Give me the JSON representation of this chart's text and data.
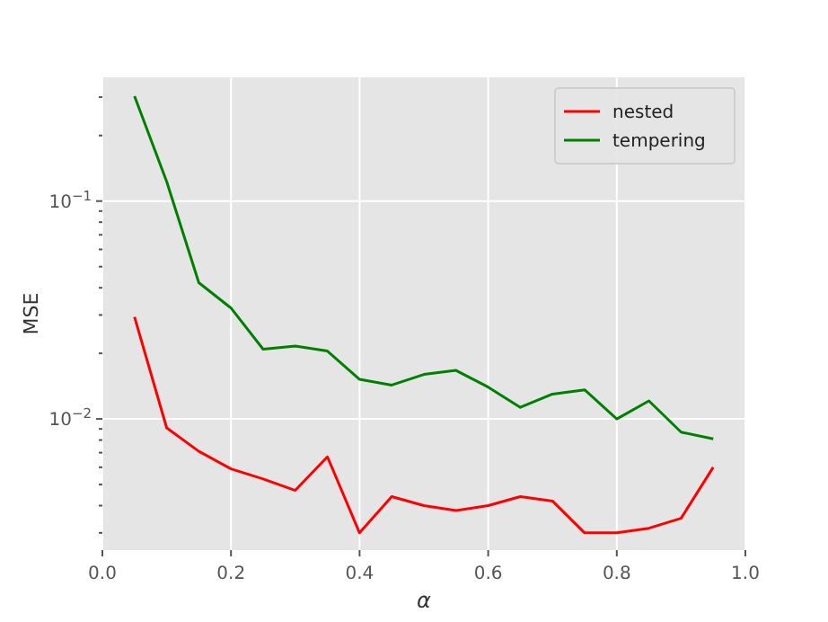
{
  "chart_data": {
    "type": "line",
    "xlabel": "α",
    "ylabel": "MSE",
    "log": "y",
    "grid": true,
    "legend": "top right",
    "line_style": "solid",
    "marker": "none",
    "x": [
      0.05,
      0.1,
      0.15,
      0.2,
      0.25,
      0.3,
      0.35,
      0.4,
      0.45,
      0.5,
      0.55,
      0.6,
      0.65,
      0.7,
      0.75,
      0.8,
      0.85,
      0.9,
      0.95
    ],
    "xlim": [
      0,
      1
    ],
    "xticks": [
      {
        "value": 0,
        "label": "0.0"
      },
      0.2,
      0.4,
      0.6,
      0.8,
      {
        "value": 1,
        "label": "1.0"
      }
    ],
    "ylim": [
      0.0025,
      0.37
    ],
    "yticks": [
      {
        "value": 0.003,
        "label": null
      },
      {
        "value": 0.004,
        "label": null
      },
      {
        "value": 0.005,
        "label": null
      },
      {
        "value": 0.006,
        "label": null
      },
      {
        "value": 0.007,
        "label": null
      },
      {
        "value": 0.008,
        "label": null
      },
      {
        "value": 0.009,
        "label": null
      },
      {
        "value": 0.01,
        "label": "10$^{−2}$"
      },
      {
        "value": 0.02,
        "label": null
      },
      {
        "value": 0.03,
        "label": null
      },
      {
        "value": 0.04,
        "label": null
      },
      {
        "value": 0.05,
        "label": null
      },
      {
        "value": 0.06,
        "label": null
      },
      {
        "value": 0.07,
        "label": null
      },
      {
        "value": 0.08,
        "label": null
      },
      {
        "value": 0.09,
        "label": null
      },
      {
        "value": 0.1,
        "label": "10$^{−1}$"
      },
      {
        "value": 0.2,
        "label": null
      },
      {
        "value": 0.3,
        "label": null
      }
    ],
    "series": [
      {
        "name": "nested",
        "color": "#ff0000",
        "values": [
          0.0294,
          0.0091,
          0.0071,
          0.0059,
          0.0053,
          0.0047,
          0.0067,
          0.003,
          0.0044,
          0.004,
          0.0038,
          0.004,
          0.0044,
          0.0042,
          0.003,
          0.003,
          0.00315,
          0.0035,
          0.006
        ]
      },
      {
        "name": "tempering",
        "color": "#008000",
        "values": [
          0.303,
          0.123,
          0.0422,
          0.0323,
          0.0209,
          0.0216,
          0.0205,
          0.0152,
          0.0143,
          0.016,
          0.0167,
          0.014,
          0.0113,
          0.013,
          0.0136,
          0.01,
          0.0121,
          0.0087,
          0.0081
        ]
      }
    ]
  }
}
